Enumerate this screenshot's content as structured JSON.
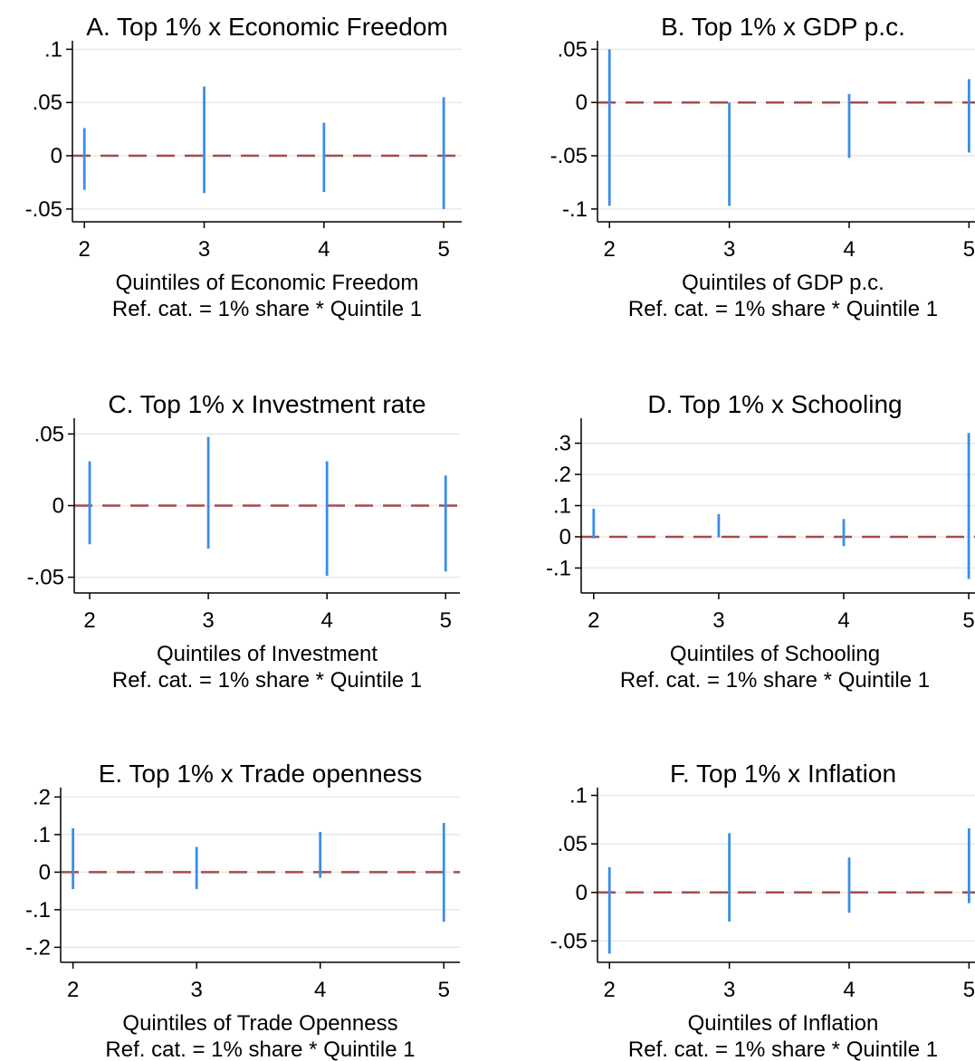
{
  "style": {
    "ci_color": "#3a8ee6",
    "ref_color": "#a64b4b",
    "grid_color": "#e8e8e8",
    "axis_color": "#000000"
  },
  "chart_data": [
    {
      "type": "errorbar",
      "title": "A. Top 1% x Economic Freedom",
      "xlabel": "Quintiles of Economic Freedom",
      "xlabel2": "Ref. cat. = 1% share * Quintile 1",
      "x": [
        2,
        3,
        4,
        5
      ],
      "lower": [
        -0.032,
        -0.035,
        -0.034,
        -0.05
      ],
      "upper": [
        0.026,
        0.065,
        0.031,
        0.055
      ],
      "reference_line": 0,
      "yticks": [
        -0.05,
        0,
        0.05,
        0.1
      ],
      "ytick_labels": [
        "-.05",
        "0",
        ".05",
        ".1"
      ],
      "ylim": [
        -0.062,
        0.108
      ],
      "xlim": [
        1.9,
        5.15
      ],
      "grid": true
    },
    {
      "type": "errorbar",
      "title": "B. Top 1% x GDP p.c.",
      "xlabel": "Quintiles of GDP p.c.",
      "xlabel2": "Ref. cat. = 1% share * Quintile 1",
      "x": [
        2,
        3,
        4,
        5
      ],
      "lower": [
        -0.097,
        -0.097,
        -0.052,
        -0.047
      ],
      "upper": [
        0.05,
        0.0,
        0.008,
        0.022
      ],
      "reference_line": 0,
      "yticks": [
        -0.1,
        -0.05,
        0,
        0.05
      ],
      "ytick_labels": [
        "-.1",
        "-.05",
        "0",
        ".05"
      ],
      "ylim": [
        -0.112,
        0.058
      ],
      "xlim": [
        1.9,
        5.05
      ],
      "grid": true
    },
    {
      "type": "errorbar",
      "title": "C. Top 1% x Investment rate",
      "xlabel": "Quintiles of Investment",
      "xlabel2": "Ref. cat. = 1% share * Quintile 1",
      "x": [
        2,
        3,
        4,
        5
      ],
      "lower": [
        -0.027,
        -0.03,
        -0.049,
        -0.046
      ],
      "upper": [
        0.031,
        0.048,
        0.031,
        0.021
      ],
      "reference_line": 0,
      "yticks": [
        -0.05,
        0,
        0.05
      ],
      "ytick_labels": [
        "-.05",
        "0",
        ".05"
      ],
      "ylim": [
        -0.061,
        0.061
      ],
      "xlim": [
        1.87,
        5.12
      ],
      "grid": true
    },
    {
      "type": "errorbar",
      "title": "D. Top 1% x Schooling",
      "xlabel": "Quintiles of Schooling",
      "xlabel2": "Ref. cat. = 1% share * Quintile 1",
      "x": [
        2,
        3,
        4,
        5
      ],
      "lower": [
        -0.005,
        -0.002,
        -0.03,
        -0.135
      ],
      "upper": [
        0.09,
        0.073,
        0.057,
        0.333
      ],
      "reference_line": 0,
      "yticks": [
        -0.1,
        0,
        0.1,
        0.2,
        0.3
      ],
      "ytick_labels": [
        "-.1",
        "0",
        ".1",
        ".2",
        ".3"
      ],
      "ylim": [
        -0.18,
        0.38
      ],
      "xlim": [
        1.9,
        5.05
      ],
      "grid": true
    },
    {
      "type": "errorbar",
      "title": "E. Top 1% x Trade openness",
      "xlabel": "Quintiles of Trade Openness",
      "xlabel2": "Ref. cat. = 1% share * Quintile 1",
      "x": [
        2,
        3,
        4,
        5
      ],
      "lower": [
        -0.045,
        -0.045,
        -0.015,
        -0.132
      ],
      "upper": [
        0.117,
        0.067,
        0.107,
        0.131
      ],
      "reference_line": 0,
      "yticks": [
        -0.2,
        -0.1,
        0,
        0.1,
        0.2
      ],
      "ytick_labels": [
        "-.2",
        "-.1",
        "0",
        ".1",
        ".2"
      ],
      "ylim": [
        -0.24,
        0.225
      ],
      "xlim": [
        1.9,
        5.13
      ],
      "grid": true
    },
    {
      "type": "errorbar",
      "title": "F. Top 1% x Inflation",
      "xlabel": "Quintiles of Inflation",
      "xlabel2": "Ref. cat. = 1% share * Quintile 1",
      "x": [
        2,
        3,
        4,
        5
      ],
      "lower": [
        -0.063,
        -0.03,
        -0.021,
        -0.011
      ],
      "upper": [
        0.026,
        0.061,
        0.036,
        0.066
      ],
      "reference_line": 0,
      "yticks": [
        -0.05,
        0,
        0.05,
        0.1
      ],
      "ytick_labels": [
        "-.05",
        "0",
        ".05",
        ".1"
      ],
      "ylim": [
        -0.072,
        0.108
      ],
      "xlim": [
        1.9,
        5.05
      ],
      "grid": true
    }
  ]
}
